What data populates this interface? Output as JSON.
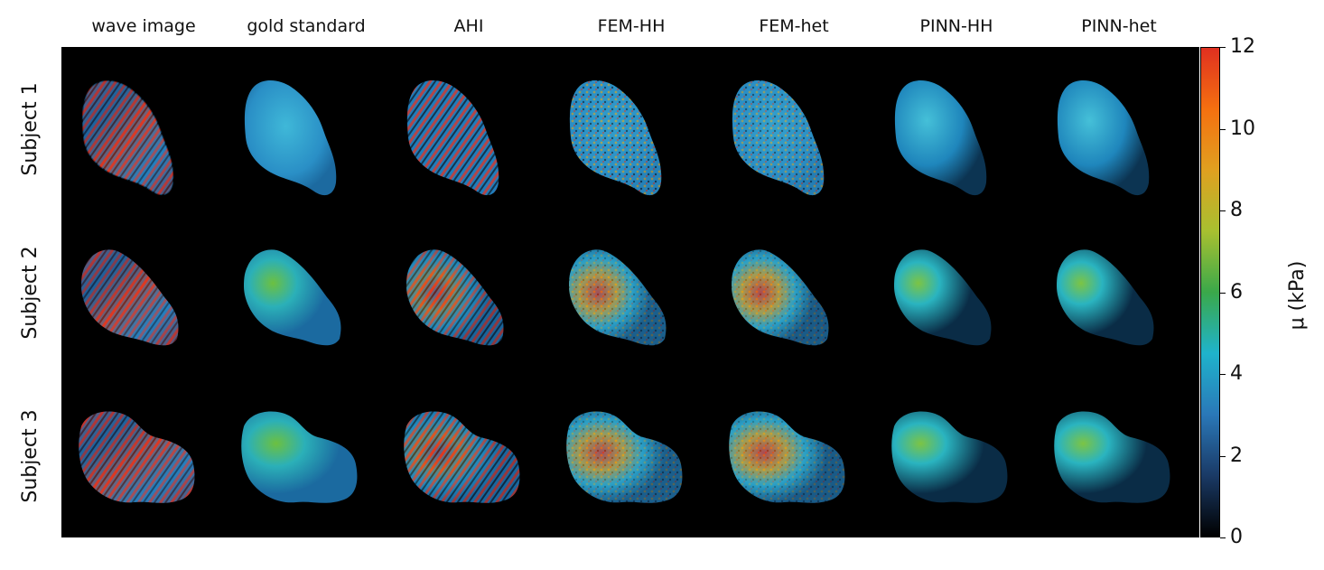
{
  "columns": [
    "wave image",
    "gold standard",
    "AHI",
    "FEM-HH",
    "FEM-het",
    "PINN-HH",
    "PINN-het"
  ],
  "rows": [
    "Subject 1",
    "Subject 2",
    "Subject 3"
  ],
  "colorbar": {
    "label": "μ (kPa)",
    "ticks": [
      "0",
      "2",
      "4",
      "6",
      "8",
      "10",
      "12"
    ],
    "range": [
      0,
      12
    ],
    "colors": [
      "#000000",
      "#1a3a66",
      "#2a78b8",
      "#1fb3cc",
      "#3aa84a",
      "#a8c030",
      "#e0a020",
      "#f57010",
      "#e03020"
    ]
  }
}
